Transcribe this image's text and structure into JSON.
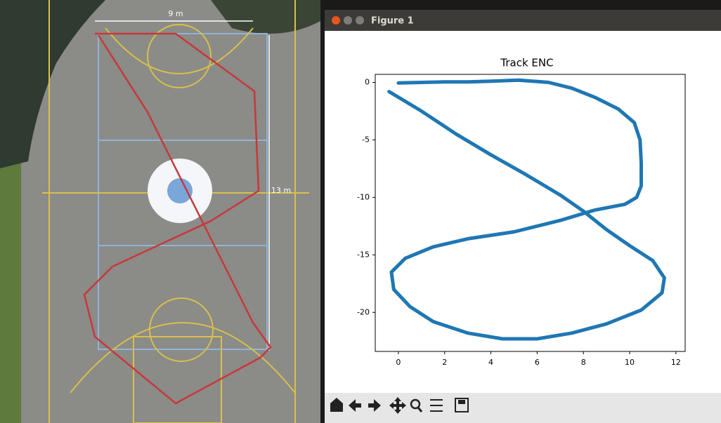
{
  "photo": {
    "labels": [
      "9 m",
      "13 m"
    ]
  },
  "window": {
    "title": "Figure 1"
  },
  "chart_data": {
    "type": "line",
    "title": "Track ENC",
    "x": [
      0.0,
      1.0,
      2.0,
      3.0,
      4.0,
      5.2,
      6.5,
      7.5,
      8.5,
      9.5,
      10.2,
      10.45,
      10.5,
      10.5,
      10.3,
      9.8,
      8.5,
      7.0,
      5.0,
      3.0,
      1.5,
      0.3,
      -0.3,
      -0.2,
      0.5,
      1.5,
      3.0,
      4.5,
      6.0,
      7.5,
      9.0,
      10.5,
      11.4,
      11.5,
      11.0,
      10.0,
      9.0,
      8.0,
      7.0,
      5.5,
      4.0,
      2.5,
      1.0,
      -0.4
    ],
    "values": [
      -0.05,
      0.0,
      0.05,
      0.05,
      0.1,
      0.2,
      0.0,
      -0.5,
      -1.3,
      -2.3,
      -3.5,
      -5.0,
      -7.0,
      -9.0,
      -10.0,
      -10.6,
      -11.1,
      -12.0,
      -13.0,
      -13.6,
      -14.3,
      -15.3,
      -16.5,
      -18.0,
      -19.5,
      -20.8,
      -21.8,
      -22.3,
      -22.3,
      -21.8,
      -21.0,
      -19.8,
      -18.3,
      -17.0,
      -15.5,
      -14.2,
      -12.8,
      -11.2,
      -9.8,
      -8.0,
      -6.3,
      -4.5,
      -2.5,
      -0.8
    ],
    "color": "#1f77b4",
    "xlim": [
      -1.0,
      12.4
    ],
    "ylim": [
      -23.4,
      0.7
    ],
    "xticks": [
      0,
      2,
      4,
      6,
      8,
      10,
      12
    ],
    "yticks": [
      0,
      -5,
      -10,
      -15,
      -20
    ]
  }
}
